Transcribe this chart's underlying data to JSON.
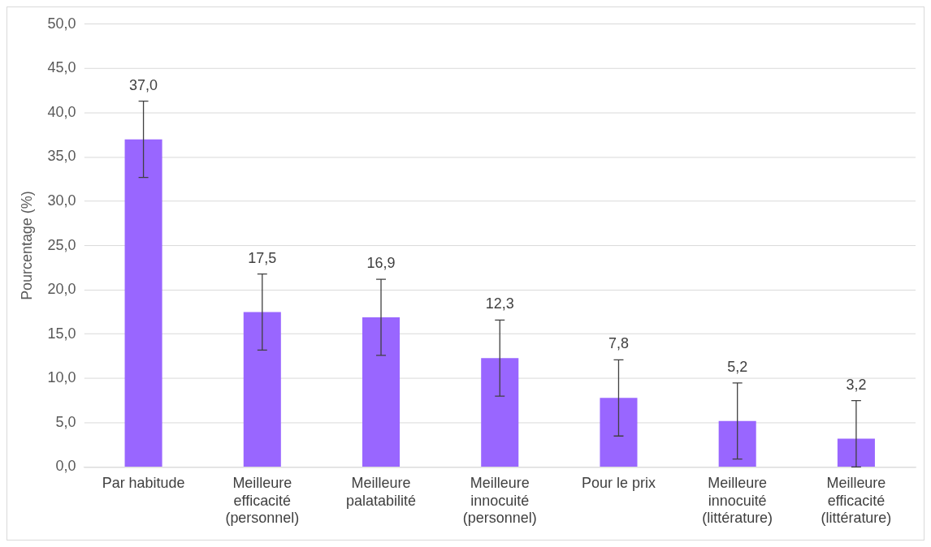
{
  "chart_data": {
    "type": "bar",
    "ylabel": "Pourcentage (%)",
    "categories": [
      "Par habitude",
      "Meilleure efficacité (personnel)",
      "Meilleure palatabilité",
      "Meilleure innocuité (personnel)",
      "Pour le prix",
      "Meilleure innocuité (littérature)",
      "Meilleure efficacité (littérature)"
    ],
    "values": [
      37.0,
      17.5,
      16.9,
      12.3,
      7.8,
      5.2,
      3.2
    ],
    "errors": [
      4.3,
      4.3,
      4.3,
      4.3,
      4.3,
      4.3,
      [
        0,
        7.5
      ]
    ],
    "value_labels": [
      "37,0",
      "17,5",
      "16,9",
      "12,3",
      "7,8",
      "5,2",
      "3,2"
    ],
    "color": "#9966ff",
    "ylim": [
      0,
      50
    ],
    "yticks": [
      {
        "value": 0,
        "label": "0,0"
      },
      {
        "value": 5,
        "label": "5,0"
      },
      {
        "value": 10,
        "label": "10,0"
      },
      {
        "value": 15,
        "label": "15,0"
      },
      {
        "value": 20,
        "label": "20,0"
      },
      {
        "value": 25,
        "label": "25,0"
      },
      {
        "value": 30,
        "label": "30,0"
      },
      {
        "value": 35,
        "label": "35,0"
      },
      {
        "value": 40,
        "label": "40,0"
      },
      {
        "value": 45,
        "label": "45,0"
      },
      {
        "value": 50,
        "label": "50,0"
      }
    ],
    "grid": "y",
    "legend": false
  }
}
